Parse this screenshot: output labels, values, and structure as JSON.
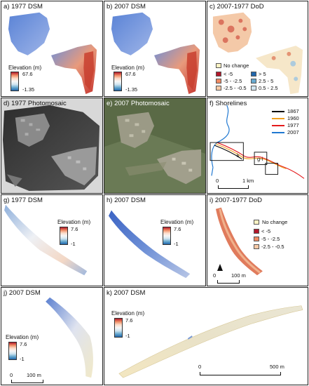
{
  "panels": {
    "a": {
      "title": "a) 1977 DSM",
      "legend_title": "Elevation (m)",
      "max": "67.6",
      "min": "-1.35"
    },
    "b": {
      "title": "b) 2007 DSM",
      "legend_title": "Elevation (m)",
      "max": "67.6",
      "min": "-1.35"
    },
    "c": {
      "title": "c) 2007-1977 DoD",
      "no_change": "No change",
      "classes": [
        {
          "label": "< -5",
          "color": "#b2182b"
        },
        {
          "label": "-5 - -2.5",
          "color": "#ef8a62"
        },
        {
          "label": "-2.5 - -0.5",
          "color": "#f7c9a6"
        },
        {
          "label": "> 5",
          "color": "#2166ac"
        },
        {
          "label": "2.5 - 5",
          "color": "#67a9cf"
        },
        {
          "label": "0.5 - 2.5",
          "color": "#d1e5f0"
        }
      ]
    },
    "d": {
      "title": "d) 1977 Photomosaic"
    },
    "e": {
      "title": "e) 2007 Photomosaic"
    },
    "f": {
      "title": "f) Shorelines",
      "legend": [
        {
          "label": "1867",
          "color": "#000000"
        },
        {
          "label": "1960",
          "color": "#f0a020"
        },
        {
          "label": "1977",
          "color": "#e41a1c"
        },
        {
          "label": "2007",
          "color": "#1f78d1"
        }
      ],
      "scale_start": "0",
      "scale_end": "1 km",
      "box_k": "k",
      "box_g": "g-i"
    },
    "g": {
      "title": "g) 1977 DSM",
      "legend_title": "Elevation (m)",
      "max": "7.6",
      "min": "-1"
    },
    "h": {
      "title": "h) 2007 DSM",
      "legend_title": "Elevation (m)",
      "max": "7.6",
      "min": "-1"
    },
    "i": {
      "title": "i) 2007-1977 DoD",
      "no_change": "No change",
      "classes": [
        {
          "label": "< -5",
          "color": "#b2182b"
        },
        {
          "label": "-5 - -2.5",
          "color": "#ef8a62"
        },
        {
          "label": "-2.5 - -0.5",
          "color": "#f7c9a6"
        }
      ],
      "scale_start": "0",
      "scale_end": "100 m"
    },
    "j": {
      "title": "j) 2007 DSM",
      "legend_title": "Elevation (m)",
      "max": "7.6",
      "min": "-1",
      "scale_start": "0",
      "scale_end": "100 m"
    },
    "k": {
      "title": "k) 2007 DSM",
      "legend_title": "Elevation (m)",
      "max": "7.6",
      "min": "-1",
      "scale_start": "0",
      "scale_end": "500 m"
    }
  },
  "colors": {
    "no_change": "#fdf3c4",
    "low": "#2166ac",
    "high": "#b2182b"
  }
}
